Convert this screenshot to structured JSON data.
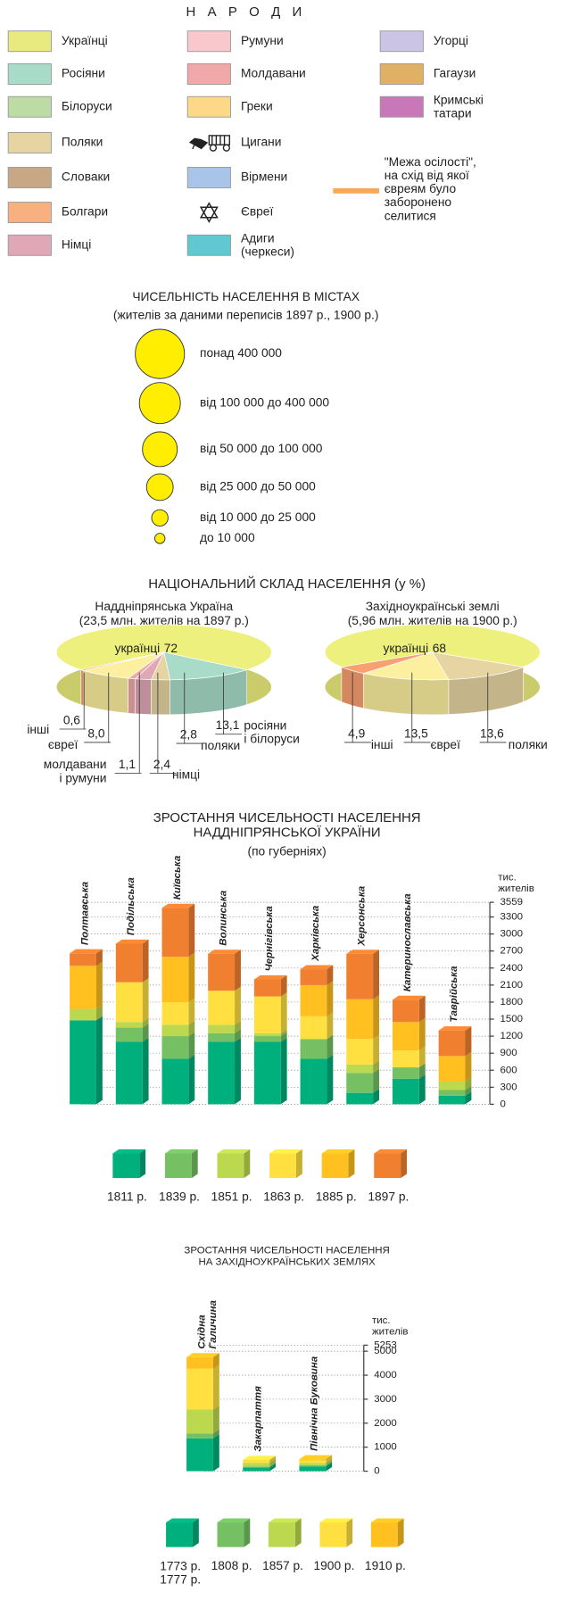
{
  "legend": {
    "title": "Н А Р О Д И",
    "items": [
      {
        "label": "Українці",
        "color": "#e8ea80"
      },
      {
        "label": "Росіяни",
        "color": "#a8dcc8"
      },
      {
        "label": "Білоруси",
        "color": "#bcdca4"
      },
      {
        "label": "Поляки",
        "color": "#e6d4a2"
      },
      {
        "label": "Словаки",
        "color": "#c8a884"
      },
      {
        "label": "Болгари",
        "color": "#f8b080"
      },
      {
        "label": "Німці",
        "color": "#e0a8b6"
      },
      {
        "label": "Румуни",
        "color": "#f8c8cc"
      },
      {
        "label": "Молдавани",
        "color": "#f0a8a8"
      },
      {
        "label": "Греки",
        "color": "#fcd888"
      },
      {
        "label": "Цигани"
      },
      {
        "label": "Вірмени",
        "color": "#a8c4e8"
      },
      {
        "label": "Євреї"
      },
      {
        "label": "Адиги\n(черкеси)",
        "color": "#60c8d0"
      },
      {
        "label": "Угорці",
        "color": "#ccc4e4"
      },
      {
        "label": "Гагаузи",
        "color": "#e0b064"
      },
      {
        "label": "Кримські\nтатари",
        "color": "#c878b8"
      }
    ],
    "border": {
      "label": "\"Межа осілості\",\nна схід від якої\nєвреям було\nзаборонено\nселитися",
      "color": "#f8a858"
    }
  },
  "city_sizes": {
    "title": "ЧИСЕЛЬНІСТЬ НАСЕЛЕННЯ В МІСТАХ",
    "subtitle": "(жителів за даними переписів 1897 р., 1900 р.)",
    "classes": [
      "понад 400 000",
      "від 100 000 до 400 000",
      "від 50 000 до 100 000",
      "від 25 000 до 50 000",
      "від 10 000 до 25 000",
      "до 10 000"
    ]
  },
  "composition_title": "НАЦІОНАЛЬНИЙ СКЛАД НАСЕЛЕННЯ (у %)",
  "chart_data": [
    {
      "type": "pie",
      "title": "Наддніпрянська Україна",
      "subtitle": "(23,5 млн. жителів на 1897 р.)",
      "categories": [
        "українці",
        "росіяни\nі білоруси",
        "поляки",
        "німці",
        "молдавани\nі румуни",
        "євреї",
        "інші"
      ],
      "values": [
        72,
        13.1,
        2.8,
        2.4,
        1.1,
        8.0,
        0.6
      ],
      "value_labels": [
        "72",
        "13,1",
        "2,8",
        "2,4",
        "1,1",
        "8,0",
        "0,6"
      ],
      "colors": [
        "#eef07e",
        "#a8dcc8",
        "#e6d4a2",
        "#e0a8b6",
        "#f0a8a8",
        "#fcf0a0",
        "#f8a070"
      ]
    },
    {
      "type": "pie",
      "title": "Західноукраїнські землі",
      "subtitle": "(5,96 млн. жителів на 1900 р.)",
      "categories": [
        "українці",
        "поляки",
        "євреї",
        "інші"
      ],
      "values": [
        68,
        13.6,
        13.5,
        4.9
      ],
      "value_labels": [
        "68",
        "13,6",
        "13,5",
        "4,9"
      ],
      "colors": [
        "#eef07e",
        "#e6d4a2",
        "#fcf0a0",
        "#f8a070"
      ]
    },
    {
      "type": "bar",
      "stacked": true,
      "title": "ЗРОСТАННЯ ЧИСЕЛЬНОСТІ НАСЕЛЕННЯ\nНАДДНІПРЯНСЬКОЇ УКРАЇНИ",
      "subtitle": "(по губерніях)",
      "y_label": "тис.\nжителів",
      "categories": [
        "Полтавська",
        "Подільська",
        "Київська",
        "Волинська",
        "Чернігівська",
        "Харківська",
        "Херсонська",
        "Катеринославська",
        "Таврійська"
      ],
      "series": [
        {
          "name": "1811 р.",
          "color": "#00b07c",
          "values": [
            1480,
            1100,
            800,
            1100,
            1100,
            800,
            200,
            450,
            150
          ]
        },
        {
          "name": "1839 р.",
          "color": "#74c062",
          "values": [
            0,
            250,
            400,
            150,
            100,
            350,
            350,
            200,
            100
          ]
        },
        {
          "name": "1851 р.",
          "color": "#bcd84e",
          "values": [
            200,
            100,
            200,
            150,
            50,
            0,
            150,
            0,
            150
          ]
        },
        {
          "name": "1863 р.",
          "color": "#ffe040",
          "values": [
            0,
            700,
            400,
            600,
            650,
            400,
            450,
            300,
            0
          ]
        },
        {
          "name": "1885 р.",
          "color": "#ffc020",
          "values": [
            760,
            0,
            800,
            0,
            0,
            550,
            700,
            500,
            450
          ]
        },
        {
          "name": "1897 р.",
          "color": "#f08030",
          "values": [
            220,
            680,
            860,
            650,
            300,
            280,
            800,
            390,
            450
          ]
        }
      ],
      "ylim": [
        0,
        3559
      ],
      "yticks": [
        0,
        300,
        600,
        900,
        1200,
        1500,
        1800,
        2100,
        2400,
        2700,
        3000,
        3300,
        3559
      ]
    },
    {
      "type": "bar",
      "stacked": true,
      "title": "ЗРОСТАННЯ ЧИСЕЛЬНОСТІ НАСЕЛЕННЯ\nНА ЗАХІДНОУКРАЇНСЬКИХ ЗЕМЛЯХ",
      "y_label": "тис.\nжителів",
      "categories": [
        "Східна\nГаличина",
        "Закарпаття",
        "Північна Буковина"
      ],
      "series": [
        {
          "name": "1773 р.\n1777 р.",
          "color": "#00b07c",
          "values": [
            1370,
            150,
            200
          ]
        },
        {
          "name": "1808 р.",
          "color": "#74c062",
          "values": [
            200,
            50,
            50
          ]
        },
        {
          "name": "1857 р.",
          "color": "#bcd84e",
          "values": [
            1000,
            150,
            100
          ]
        },
        {
          "name": "1900 р.",
          "color": "#ffe040",
          "values": [
            1700,
            120,
            100
          ]
        },
        {
          "name": "1910 р.",
          "color": "#ffc020",
          "values": [
            480,
            0,
            50
          ]
        }
      ],
      "ylim": [
        0,
        5253
      ],
      "yticks": [
        0,
        1000,
        2000,
        3000,
        4000,
        5000,
        5253
      ]
    }
  ]
}
